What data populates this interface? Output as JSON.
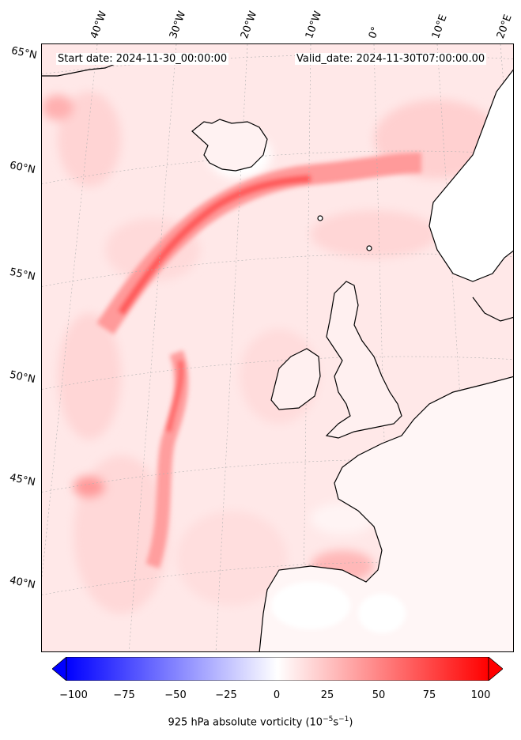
{
  "header": {
    "start_date": "Start date: 2024-11-30_00:00:00",
    "valid_date": "Valid_date: 2024-11-30T07:00:00.00"
  },
  "longitude_labels": [
    "40°W",
    "30°W",
    "20°W",
    "10°W",
    "0°",
    "10°E",
    "20°E"
  ],
  "latitude_labels": [
    "65°N",
    "60°N",
    "55°N",
    "50°N",
    "45°N",
    "40°N"
  ],
  "colorbar": {
    "ticks": [
      "−100",
      "−75",
      "−50",
      "−25",
      "0",
      "25",
      "50",
      "75",
      "100"
    ],
    "min": -100,
    "max": 100,
    "low_color": "#0000ff",
    "mid_color": "#ffffff",
    "high_color": "#ff0000",
    "label_main": "925 hPa absolute vorticity (10",
    "label_exp1": "−5",
    "label_mid": "s",
    "label_exp2": "−1",
    "label_end": ")"
  },
  "colors": {
    "background_field": "#ffe8e8",
    "coastline": "#000000",
    "gridline": "#b0b0b0"
  }
}
